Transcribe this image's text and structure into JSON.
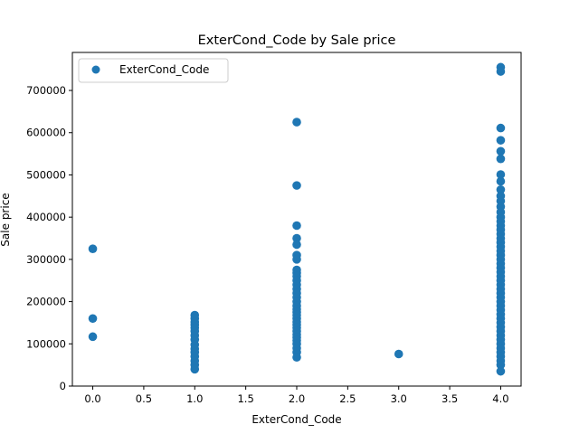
{
  "chart_data": {
    "type": "scatter",
    "title": "ExterCond_Code by Sale price",
    "xlabel": "ExterCond_Code",
    "ylabel": "Sale price",
    "xlim": [
      -0.2,
      4.2
    ],
    "ylim": [
      0,
      790000
    ],
    "xticks": [
      0.0,
      0.5,
      1.0,
      1.5,
      2.0,
      2.5,
      3.0,
      3.5,
      4.0
    ],
    "xtick_labels": [
      "0.0",
      "0.5",
      "1.0",
      "1.5",
      "2.0",
      "2.5",
      "3.0",
      "3.5",
      "4.0"
    ],
    "yticks": [
      0,
      100000,
      200000,
      300000,
      400000,
      500000,
      600000,
      700000
    ],
    "ytick_labels": [
      "0",
      "100000",
      "200000",
      "300000",
      "400000",
      "500000",
      "600000",
      "700000"
    ],
    "grid": false,
    "legend_position": "top-left",
    "color": "#1f77b4",
    "series": [
      {
        "name": "ExterCond_Code",
        "points": [
          [
            0,
            325000
          ],
          [
            0,
            160000
          ],
          [
            0,
            117000
          ],
          [
            1,
            168000
          ],
          [
            1,
            160000
          ],
          [
            1,
            152000
          ],
          [
            1,
            145000
          ],
          [
            1,
            138000
          ],
          [
            1,
            130000
          ],
          [
            1,
            120000
          ],
          [
            1,
            110000
          ],
          [
            1,
            98000
          ],
          [
            1,
            88000
          ],
          [
            1,
            80000
          ],
          [
            1,
            70000
          ],
          [
            1,
            60000
          ],
          [
            1,
            50000
          ],
          [
            1,
            40000
          ],
          [
            2,
            625000
          ],
          [
            2,
            475000
          ],
          [
            2,
            380000
          ],
          [
            2,
            350000
          ],
          [
            2,
            335000
          ],
          [
            2,
            310000
          ],
          [
            2,
            300000
          ],
          [
            2,
            275000
          ],
          [
            2,
            268000
          ],
          [
            2,
            260000
          ],
          [
            2,
            250000
          ],
          [
            2,
            240000
          ],
          [
            2,
            230000
          ],
          [
            2,
            220000
          ],
          [
            2,
            210000
          ],
          [
            2,
            200000
          ],
          [
            2,
            190000
          ],
          [
            2,
            182000
          ],
          [
            2,
            175000
          ],
          [
            2,
            168000
          ],
          [
            2,
            160000
          ],
          [
            2,
            152000
          ],
          [
            2,
            145000
          ],
          [
            2,
            138000
          ],
          [
            2,
            130000
          ],
          [
            2,
            122000
          ],
          [
            2,
            115000
          ],
          [
            2,
            108000
          ],
          [
            2,
            100000
          ],
          [
            2,
            90000
          ],
          [
            2,
            80000
          ],
          [
            2,
            68000
          ],
          [
            3,
            76000
          ],
          [
            4,
            755000
          ],
          [
            4,
            745000
          ],
          [
            4,
            611000
          ],
          [
            4,
            582000
          ],
          [
            4,
            556000
          ],
          [
            4,
            538000
          ],
          [
            4,
            501000
          ],
          [
            4,
            485000
          ],
          [
            4,
            465000
          ],
          [
            4,
            450000
          ],
          [
            4,
            438000
          ],
          [
            4,
            425000
          ],
          [
            4,
            412000
          ],
          [
            4,
            400000
          ],
          [
            4,
            390000
          ],
          [
            4,
            380000
          ],
          [
            4,
            370000
          ],
          [
            4,
            360000
          ],
          [
            4,
            350000
          ],
          [
            4,
            340000
          ],
          [
            4,
            330000
          ],
          [
            4,
            320000
          ],
          [
            4,
            310000
          ],
          [
            4,
            300000
          ],
          [
            4,
            290000
          ],
          [
            4,
            280000
          ],
          [
            4,
            270000
          ],
          [
            4,
            260000
          ],
          [
            4,
            250000
          ],
          [
            4,
            240000
          ],
          [
            4,
            230000
          ],
          [
            4,
            220000
          ],
          [
            4,
            210000
          ],
          [
            4,
            200000
          ],
          [
            4,
            190000
          ],
          [
            4,
            180000
          ],
          [
            4,
            170000
          ],
          [
            4,
            160000
          ],
          [
            4,
            150000
          ],
          [
            4,
            140000
          ],
          [
            4,
            130000
          ],
          [
            4,
            120000
          ],
          [
            4,
            110000
          ],
          [
            4,
            100000
          ],
          [
            4,
            90000
          ],
          [
            4,
            80000
          ],
          [
            4,
            70000
          ],
          [
            4,
            60000
          ],
          [
            4,
            50000
          ],
          [
            4,
            35000
          ]
        ]
      }
    ]
  }
}
